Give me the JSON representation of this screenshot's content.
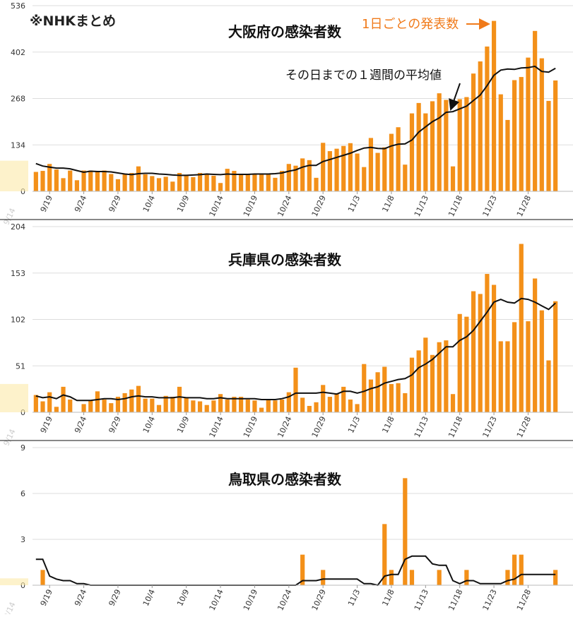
{
  "source_note": "※NHKまとめ",
  "annotation_daily": "1日ごとの発表数",
  "annotation_avg": "その日までの１週間の平均値",
  "colors": {
    "bar": "#f39019",
    "line": "#111111",
    "grid": "#dddddd",
    "accent": "#f07a1a",
    "faded": "#fbeaa8"
  },
  "chart_data": [
    {
      "type": "bar",
      "title": "大阪府の感染者数",
      "ylim": [
        0,
        536
      ],
      "yticks": [
        0,
        134,
        268,
        402,
        536
      ],
      "x_tick_labels": [
        "9/14",
        "9/19",
        "9/24",
        "9/29",
        "10/4",
        "10/9",
        "10/14",
        "10/19",
        "10/24",
        "10/29",
        "11/3",
        "11/8",
        "11/13",
        "11/18",
        "11/23",
        "11/28"
      ],
      "start_label": "9/17",
      "values": [
        56,
        59,
        79,
        63,
        38,
        60,
        32,
        60,
        60,
        59,
        60,
        50,
        35,
        49,
        53,
        72,
        49,
        44,
        38,
        42,
        28,
        53,
        48,
        41,
        53,
        51,
        45,
        24,
        65,
        59,
        51,
        48,
        51,
        52,
        51,
        39,
        59,
        79,
        74,
        95,
        90,
        39,
        140,
        116,
        123,
        131,
        139,
        109,
        70,
        154,
        111,
        127,
        166,
        185,
        77,
        225,
        255,
        225,
        260,
        283,
        264,
        72,
        266,
        272,
        340,
        375,
        418,
        492,
        280,
        206,
        321,
        330,
        386,
        463,
        384,
        261,
        320
      ],
      "avg": [
        80,
        73,
        70,
        67,
        67,
        65,
        60,
        55,
        58,
        57,
        57,
        56,
        53,
        50,
        48,
        51,
        52,
        52,
        50,
        49,
        47,
        46,
        46,
        47,
        48,
        50,
        49,
        48,
        50,
        49,
        49,
        49,
        50,
        50,
        50,
        51,
        53,
        58,
        62,
        70,
        75,
        75,
        86,
        92,
        98,
        104,
        110,
        118,
        125,
        127,
        124,
        123,
        131,
        136,
        137,
        148,
        171,
        186,
        201,
        212,
        228,
        230,
        238,
        246,
        262,
        278,
        305,
        335,
        350,
        353,
        352,
        356,
        357,
        361,
        346,
        344,
        355
      ]
    },
    {
      "type": "bar",
      "title": "兵庫県の感染者数",
      "ylim": [
        0,
        204
      ],
      "yticks": [
        0,
        51,
        102,
        153,
        204
      ],
      "x_tick_labels": [
        "9/14",
        "9/19",
        "9/24",
        "9/29",
        "10/4",
        "10/9",
        "10/14",
        "10/19",
        "10/24",
        "10/29",
        "11/3",
        "11/8",
        "11/13",
        "11/18",
        "11/23",
        "11/28"
      ],
      "start_label": "9/17",
      "values": [
        19,
        12,
        22,
        6,
        28,
        14,
        0,
        9,
        13,
        23,
        14,
        10,
        17,
        21,
        25,
        29,
        15,
        15,
        8,
        18,
        17,
        28,
        16,
        13,
        12,
        8,
        13,
        20,
        14,
        17,
        17,
        14,
        13,
        5,
        14,
        13,
        14,
        22,
        49,
        16,
        7,
        11,
        30,
        17,
        21,
        28,
        14,
        9,
        53,
        36,
        44,
        50,
        31,
        32,
        21,
        60,
        68,
        82,
        63,
        77,
        79,
        20,
        108,
        105,
        133,
        130,
        152,
        140,
        78,
        78,
        99,
        185,
        100,
        147,
        112,
        57,
        122
      ],
      "avg": [
        18,
        16,
        17,
        15,
        19,
        17,
        13,
        13,
        13,
        14,
        15,
        15,
        14,
        15,
        17,
        18,
        17,
        17,
        16,
        16,
        16,
        17,
        16,
        16,
        16,
        15,
        15,
        16,
        15,
        15,
        15,
        15,
        15,
        14,
        14,
        14,
        15,
        17,
        21,
        21,
        21,
        21,
        22,
        21,
        20,
        23,
        23,
        21,
        23,
        26,
        28,
        32,
        34,
        36,
        37,
        41,
        49,
        53,
        58,
        65,
        72,
        72,
        79,
        83,
        90,
        100,
        110,
        121,
        124,
        121,
        120,
        125,
        124,
        121,
        117,
        113,
        120
      ]
    },
    {
      "type": "bar",
      "title": "鳥取県の感染者数",
      "ylim": [
        0,
        9
      ],
      "yticks": [
        0,
        3,
        6,
        9
      ],
      "x_tick_labels": [
        "9/14",
        "9/19",
        "9/24",
        "9/29",
        "10/4",
        "10/9",
        "10/14",
        "10/19",
        "10/24",
        "10/29",
        "11/3",
        "11/8",
        "11/13",
        "11/18",
        "11/23",
        "11/28"
      ],
      "start_label": "9/17",
      "values": [
        0,
        1,
        0,
        0,
        0,
        0,
        0,
        0,
        0,
        0,
        0,
        0,
        0,
        0,
        0,
        0,
        0,
        0,
        0,
        0,
        0,
        0,
        0,
        0,
        0,
        0,
        0,
        0,
        0,
        0,
        0,
        0,
        0,
        0,
        0,
        0,
        0,
        0,
        0,
        2,
        0,
        0,
        1,
        0,
        0,
        0,
        0,
        0,
        0,
        0,
        0,
        4,
        1,
        0,
        7,
        1,
        0,
        0,
        0,
        1,
        0,
        0,
        0,
        1,
        0,
        0,
        0,
        0,
        0,
        1,
        2,
        2,
        0,
        0,
        0,
        0,
        1
      ],
      "avg": [
        1.7,
        1.7,
        0.6,
        0.4,
        0.3,
        0.3,
        0.1,
        0.1,
        0,
        0,
        0,
        0,
        0,
        0,
        0,
        0,
        0,
        0,
        0,
        0,
        0,
        0,
        0,
        0,
        0,
        0,
        0,
        0,
        0,
        0,
        0,
        0,
        0,
        0,
        0,
        0,
        0,
        0,
        0,
        0.3,
        0.3,
        0.3,
        0.4,
        0.4,
        0.4,
        0.4,
        0.4,
        0.4,
        0.1,
        0.1,
        0,
        0.6,
        0.7,
        0.7,
        1.7,
        1.9,
        1.9,
        1.9,
        1.4,
        1.3,
        1.3,
        0.3,
        0.1,
        0.3,
        0.3,
        0.1,
        0.1,
        0.1,
        0.1,
        0.3,
        0.4,
        0.7,
        0.7,
        0.7,
        0.7,
        0.7,
        0.7
      ]
    }
  ]
}
